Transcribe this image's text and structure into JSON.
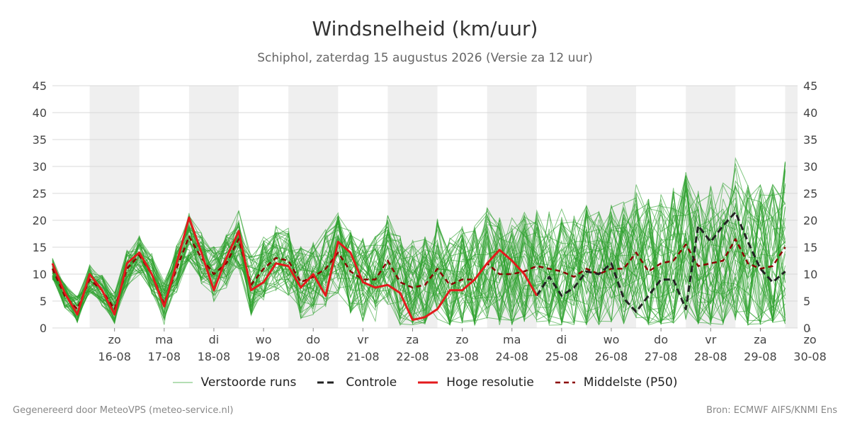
{
  "chart_data": {
    "type": "line",
    "title": "Windsnelheid (km/uur)",
    "subtitle": "Schiphol, zaterdag 15 augustus 2026 (Versie za 12 uur)",
    "ylim": [
      0,
      45
    ],
    "yticks": [
      0,
      5,
      10,
      15,
      20,
      25,
      30,
      35,
      40,
      45
    ],
    "grid": true,
    "legend_position": "bottom",
    "x_domain_days": 15,
    "x_step_days": 0.25,
    "day_labels": [
      {
        "day": "zo",
        "date": "16-08"
      },
      {
        "day": "ma",
        "date": "17-08"
      },
      {
        "day": "di",
        "date": "18-08"
      },
      {
        "day": "wo",
        "date": "19-08"
      },
      {
        "day": "do",
        "date": "20-08"
      },
      {
        "day": "vr",
        "date": "21-08"
      },
      {
        "day": "za",
        "date": "22-08"
      },
      {
        "day": "zo",
        "date": "23-08"
      },
      {
        "day": "ma",
        "date": "24-08"
      },
      {
        "day": "di",
        "date": "25-08"
      },
      {
        "day": "wo",
        "date": "26-08"
      },
      {
        "day": "do",
        "date": "27-08"
      },
      {
        "day": "vr",
        "date": "28-08"
      },
      {
        "day": "za",
        "date": "29-08"
      },
      {
        "day": "zo",
        "date": "30-08"
      }
    ],
    "series": [
      {
        "name": "Hoge resolutie",
        "color": "#e31a1c",
        "dash": "",
        "values": [
          12,
          6.5,
          2.5,
          10,
          7,
          2.5,
          12,
          14,
          10,
          4,
          12,
          20.5,
          14,
          7,
          13,
          18,
          7,
          8.5,
          12,
          11.5,
          7.5,
          10,
          6,
          16,
          14,
          8.5,
          7.5,
          8,
          6.5,
          1.5,
          2,
          3.5,
          7,
          7,
          9,
          12,
          14.5,
          12.5,
          10,
          6
        ]
      },
      {
        "name": "Controle",
        "color": "#222222",
        "dash": "9,5",
        "values": [
          null,
          null,
          null,
          null,
          null,
          null,
          null,
          null,
          null,
          null,
          null,
          null,
          null,
          null,
          null,
          null,
          null,
          null,
          null,
          null,
          null,
          null,
          null,
          null,
          null,
          null,
          null,
          null,
          null,
          null,
          null,
          null,
          null,
          null,
          null,
          null,
          null,
          null,
          null,
          6,
          9.5,
          6,
          7.5,
          10.5,
          10,
          12,
          5.5,
          3,
          6,
          9,
          9,
          3.5,
          19,
          16,
          19,
          21.5,
          16,
          11,
          8.5,
          10.5
        ]
      },
      {
        "name": "Middelste (P50)",
        "color": "#8b0000",
        "dash": "7,5",
        "values": [
          11,
          6,
          3.5,
          9,
          7,
          3.5,
          11,
          13.5,
          10,
          4.5,
          11,
          17,
          13,
          10,
          12,
          16.5,
          8,
          11,
          13,
          12.5,
          8.5,
          9.5,
          11,
          14,
          10.5,
          9,
          9,
          12.5,
          8.5,
          7.5,
          8,
          11,
          8,
          9,
          9,
          12,
          10,
          10,
          10.5,
          11.5,
          11,
          10.5,
          9.5,
          11,
          10,
          11,
          11,
          14,
          10.5,
          12,
          12.5,
          15.5,
          11.5,
          12,
          12.5,
          16.5,
          12,
          11,
          11.5,
          15
        ]
      }
    ],
    "ensemble_name": "Verstoorde runs",
    "ensemble_color": "#2ca02c",
    "ensemble_members": 50
  },
  "legend": [
    {
      "label": "Verstoorde runs",
      "style": "thin",
      "color": "#2ca02c"
    },
    {
      "label": "Controle",
      "style": "dash",
      "color": "#222222"
    },
    {
      "label": "Hoge resolutie",
      "style": "solid",
      "color": "#e31a1c"
    },
    {
      "label": "Middelste (P50)",
      "style": "dash",
      "color": "#8b0000"
    }
  ],
  "footer": {
    "left": "Gegenereerd door MeteoVPS (meteo-service.nl)",
    "right": "Bron: ECMWF AIFS/KNMI Ens"
  }
}
